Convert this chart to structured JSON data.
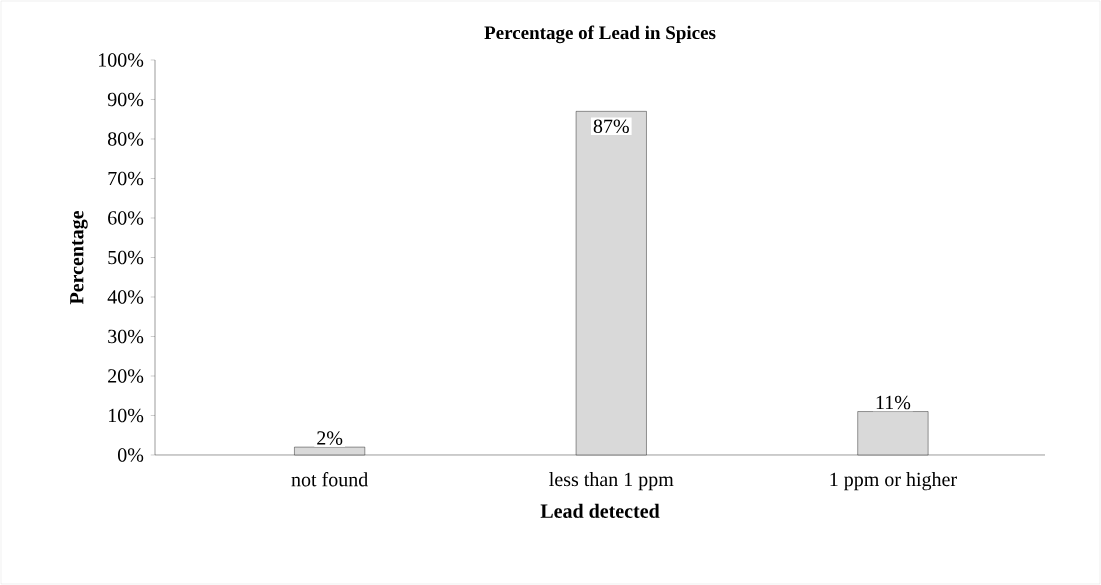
{
  "chart_data": {
    "type": "bar",
    "title": "Percentage of Lead in Spices",
    "xlabel": "Lead detected",
    "ylabel": "Percentage",
    "categories": [
      "not found",
      "less than 1 ppm",
      "1 ppm or higher"
    ],
    "values": [
      2,
      87,
      11
    ],
    "value_labels": [
      "2%",
      "87%",
      "11%"
    ],
    "color": "#d9d9d9",
    "ylim": [
      0,
      100
    ],
    "yticks": [
      {
        "value": 0,
        "label": "0%"
      },
      {
        "value": 10,
        "label": "10%"
      },
      {
        "value": 20,
        "label": "20%"
      },
      {
        "value": 30,
        "label": "30%"
      },
      {
        "value": 40,
        "label": "40%"
      },
      {
        "value": 50,
        "label": "50%"
      },
      {
        "value": 60,
        "label": "60%"
      },
      {
        "value": 70,
        "label": "70%"
      },
      {
        "value": 80,
        "label": "80%"
      },
      {
        "value": 90,
        "label": "90%"
      },
      {
        "value": 100,
        "label": "100%"
      }
    ],
    "grid": false
  }
}
